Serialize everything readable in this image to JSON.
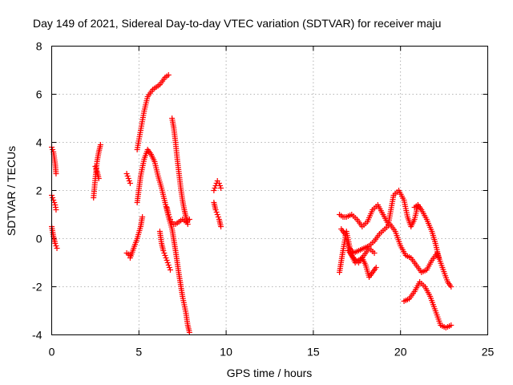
{
  "chart_data": {
    "type": "scatter",
    "title": "Day 149 of 2021, Sidereal Day-to-day VTEC variation (SDTVAR) for receiver maju",
    "xlabel": "GPS time / hours",
    "ylabel": "SDTVAR / TECUs",
    "xlim": [
      0,
      25
    ],
    "ylim": [
      -4,
      8
    ],
    "xticks": [
      0,
      5,
      10,
      15,
      20,
      25
    ],
    "yticks": [
      -4,
      -2,
      0,
      2,
      4,
      6,
      8
    ],
    "grid": true,
    "marker": "+",
    "color": "#ff0000",
    "segments": [
      {
        "x": [
          0.0,
          0.1,
          0.2,
          0.25
        ],
        "y": [
          3.8,
          3.6,
          3.1,
          2.7
        ]
      },
      {
        "x": [
          0.0,
          0.1,
          0.2,
          0.25
        ],
        "y": [
          1.8,
          1.6,
          1.4,
          1.2
        ]
      },
      {
        "x": [
          0.0,
          0.1,
          0.2,
          0.3
        ],
        "y": [
          0.5,
          0.1,
          -0.2,
          -0.4
        ]
      },
      {
        "x": [
          2.4,
          2.5,
          2.6,
          2.7,
          2.8
        ],
        "y": [
          1.7,
          2.5,
          3.2,
          3.6,
          3.9
        ]
      },
      {
        "x": [
          2.5,
          2.6,
          2.7
        ],
        "y": [
          3.0,
          2.8,
          2.5
        ]
      },
      {
        "x": [
          4.3,
          4.4,
          4.5
        ],
        "y": [
          2.7,
          2.5,
          2.3
        ]
      },
      {
        "x": [
          4.3,
          4.4,
          4.5
        ],
        "y": [
          -0.6,
          -0.65,
          -0.7
        ]
      },
      {
        "x": [
          4.5,
          4.7,
          4.9,
          5.1,
          5.2
        ],
        "y": [
          -0.8,
          -0.4,
          0.0,
          0.5,
          0.9
        ]
      },
      {
        "x": [
          4.9,
          5.1,
          5.3,
          5.5,
          5.8,
          6.2,
          6.5,
          6.7
        ],
        "y": [
          3.7,
          4.5,
          5.3,
          5.9,
          6.2,
          6.4,
          6.7,
          6.8
        ]
      },
      {
        "x": [
          4.9,
          5.1,
          5.3,
          5.5,
          5.7,
          5.9,
          6.1,
          6.3,
          6.5,
          6.7,
          6.9,
          7.1,
          7.3,
          7.5,
          7.7,
          7.8,
          7.9
        ],
        "y": [
          1.5,
          2.6,
          3.3,
          3.7,
          3.5,
          3.2,
          2.6,
          2.1,
          1.5,
          0.9,
          0.4,
          -0.5,
          -1.5,
          -2.4,
          -3.1,
          -3.6,
          -3.9
        ]
      },
      {
        "x": [
          6.2,
          6.3,
          6.4,
          6.5,
          6.6,
          6.7,
          6.8
        ],
        "y": [
          0.3,
          -0.2,
          -0.5,
          -0.7,
          -0.9,
          -1.1,
          -1.3
        ]
      },
      {
        "x": [
          6.6,
          6.7,
          6.8,
          6.9,
          7.0,
          7.1,
          7.3,
          7.5,
          7.7,
          7.9
        ],
        "y": [
          1.3,
          1.0,
          0.8,
          0.7,
          0.6,
          0.6,
          0.7,
          0.8,
          0.7,
          0.8
        ]
      },
      {
        "x": [
          6.9,
          7.0,
          7.1,
          7.2,
          7.3,
          7.4,
          7.5,
          7.6,
          7.7,
          7.8
        ],
        "y": [
          5.0,
          4.6,
          4.0,
          3.3,
          2.7,
          2.1,
          1.6,
          1.2,
          0.9,
          0.6
        ]
      },
      {
        "x": [
          9.3,
          9.4,
          9.5,
          9.6,
          9.7
        ],
        "y": [
          2.0,
          2.2,
          2.4,
          2.3,
          2.1
        ]
      },
      {
        "x": [
          9.3,
          9.4,
          9.5,
          9.6,
          9.7
        ],
        "y": [
          1.5,
          1.2,
          1.0,
          0.8,
          0.5
        ]
      },
      {
        "x": [
          16.5,
          16.7,
          16.9,
          17.2,
          17.5,
          17.8,
          18.1,
          18.4,
          18.7,
          19.0,
          19.3,
          19.6,
          19.9,
          20.2,
          20.4,
          20.6,
          20.8,
          21.0
        ],
        "y": [
          1.0,
          0.9,
          0.9,
          1.0,
          0.8,
          0.5,
          0.7,
          1.2,
          1.4,
          1.0,
          0.6,
          1.8,
          2.0,
          1.6,
          0.9,
          0.5,
          0.8,
          1.4
        ]
      },
      {
        "x": [
          16.5,
          16.7,
          16.9,
          17.1,
          17.3,
          17.6,
          17.9,
          18.2,
          18.5,
          18.8,
          19.1,
          19.4,
          19.7,
          20.0,
          20.3,
          20.6,
          20.9,
          21.2,
          21.5,
          21.8,
          22.1,
          22.4,
          22.7,
          22.9
        ],
        "y": [
          -1.4,
          -0.5,
          0.3,
          -0.4,
          -0.6,
          -0.5,
          -0.4,
          -0.3,
          -0.1,
          0.2,
          0.4,
          0.6,
          0.3,
          -0.3,
          -0.7,
          -0.8,
          -1.1,
          -1.4,
          -1.3,
          -0.9,
          -0.6,
          -1.2,
          -1.8,
          -2.0
        ]
      },
      {
        "x": [
          16.6,
          16.8,
          17.0,
          17.2,
          17.4,
          17.6,
          17.8,
          18.0,
          18.2,
          18.4,
          18.6
        ],
        "y": [
          0.4,
          0.2,
          -0.3,
          -0.7,
          -1.0,
          -0.9,
          -0.8,
          -1.1,
          -1.6,
          -1.4,
          -1.2
        ]
      },
      {
        "x": [
          17.0,
          17.3,
          17.6,
          17.9,
          18.2,
          18.5
        ],
        "y": [
          -0.5,
          -0.8,
          -1.0,
          -0.7,
          -0.4,
          -0.6
        ]
      },
      {
        "x": [
          20.2,
          20.5,
          20.8,
          21.1,
          21.4,
          21.7,
          22.0,
          22.3,
          22.6,
          22.9
        ],
        "y": [
          -2.6,
          -2.5,
          -2.2,
          -1.8,
          -2.0,
          -2.4,
          -3.0,
          -3.6,
          -3.7,
          -3.6
        ]
      },
      {
        "x": [
          20.8,
          21.0,
          21.2,
          21.5,
          21.8,
          22.0,
          22.2
        ],
        "y": [
          1.3,
          1.4,
          1.2,
          0.8,
          0.3,
          -0.2,
          -0.8
        ]
      }
    ]
  }
}
